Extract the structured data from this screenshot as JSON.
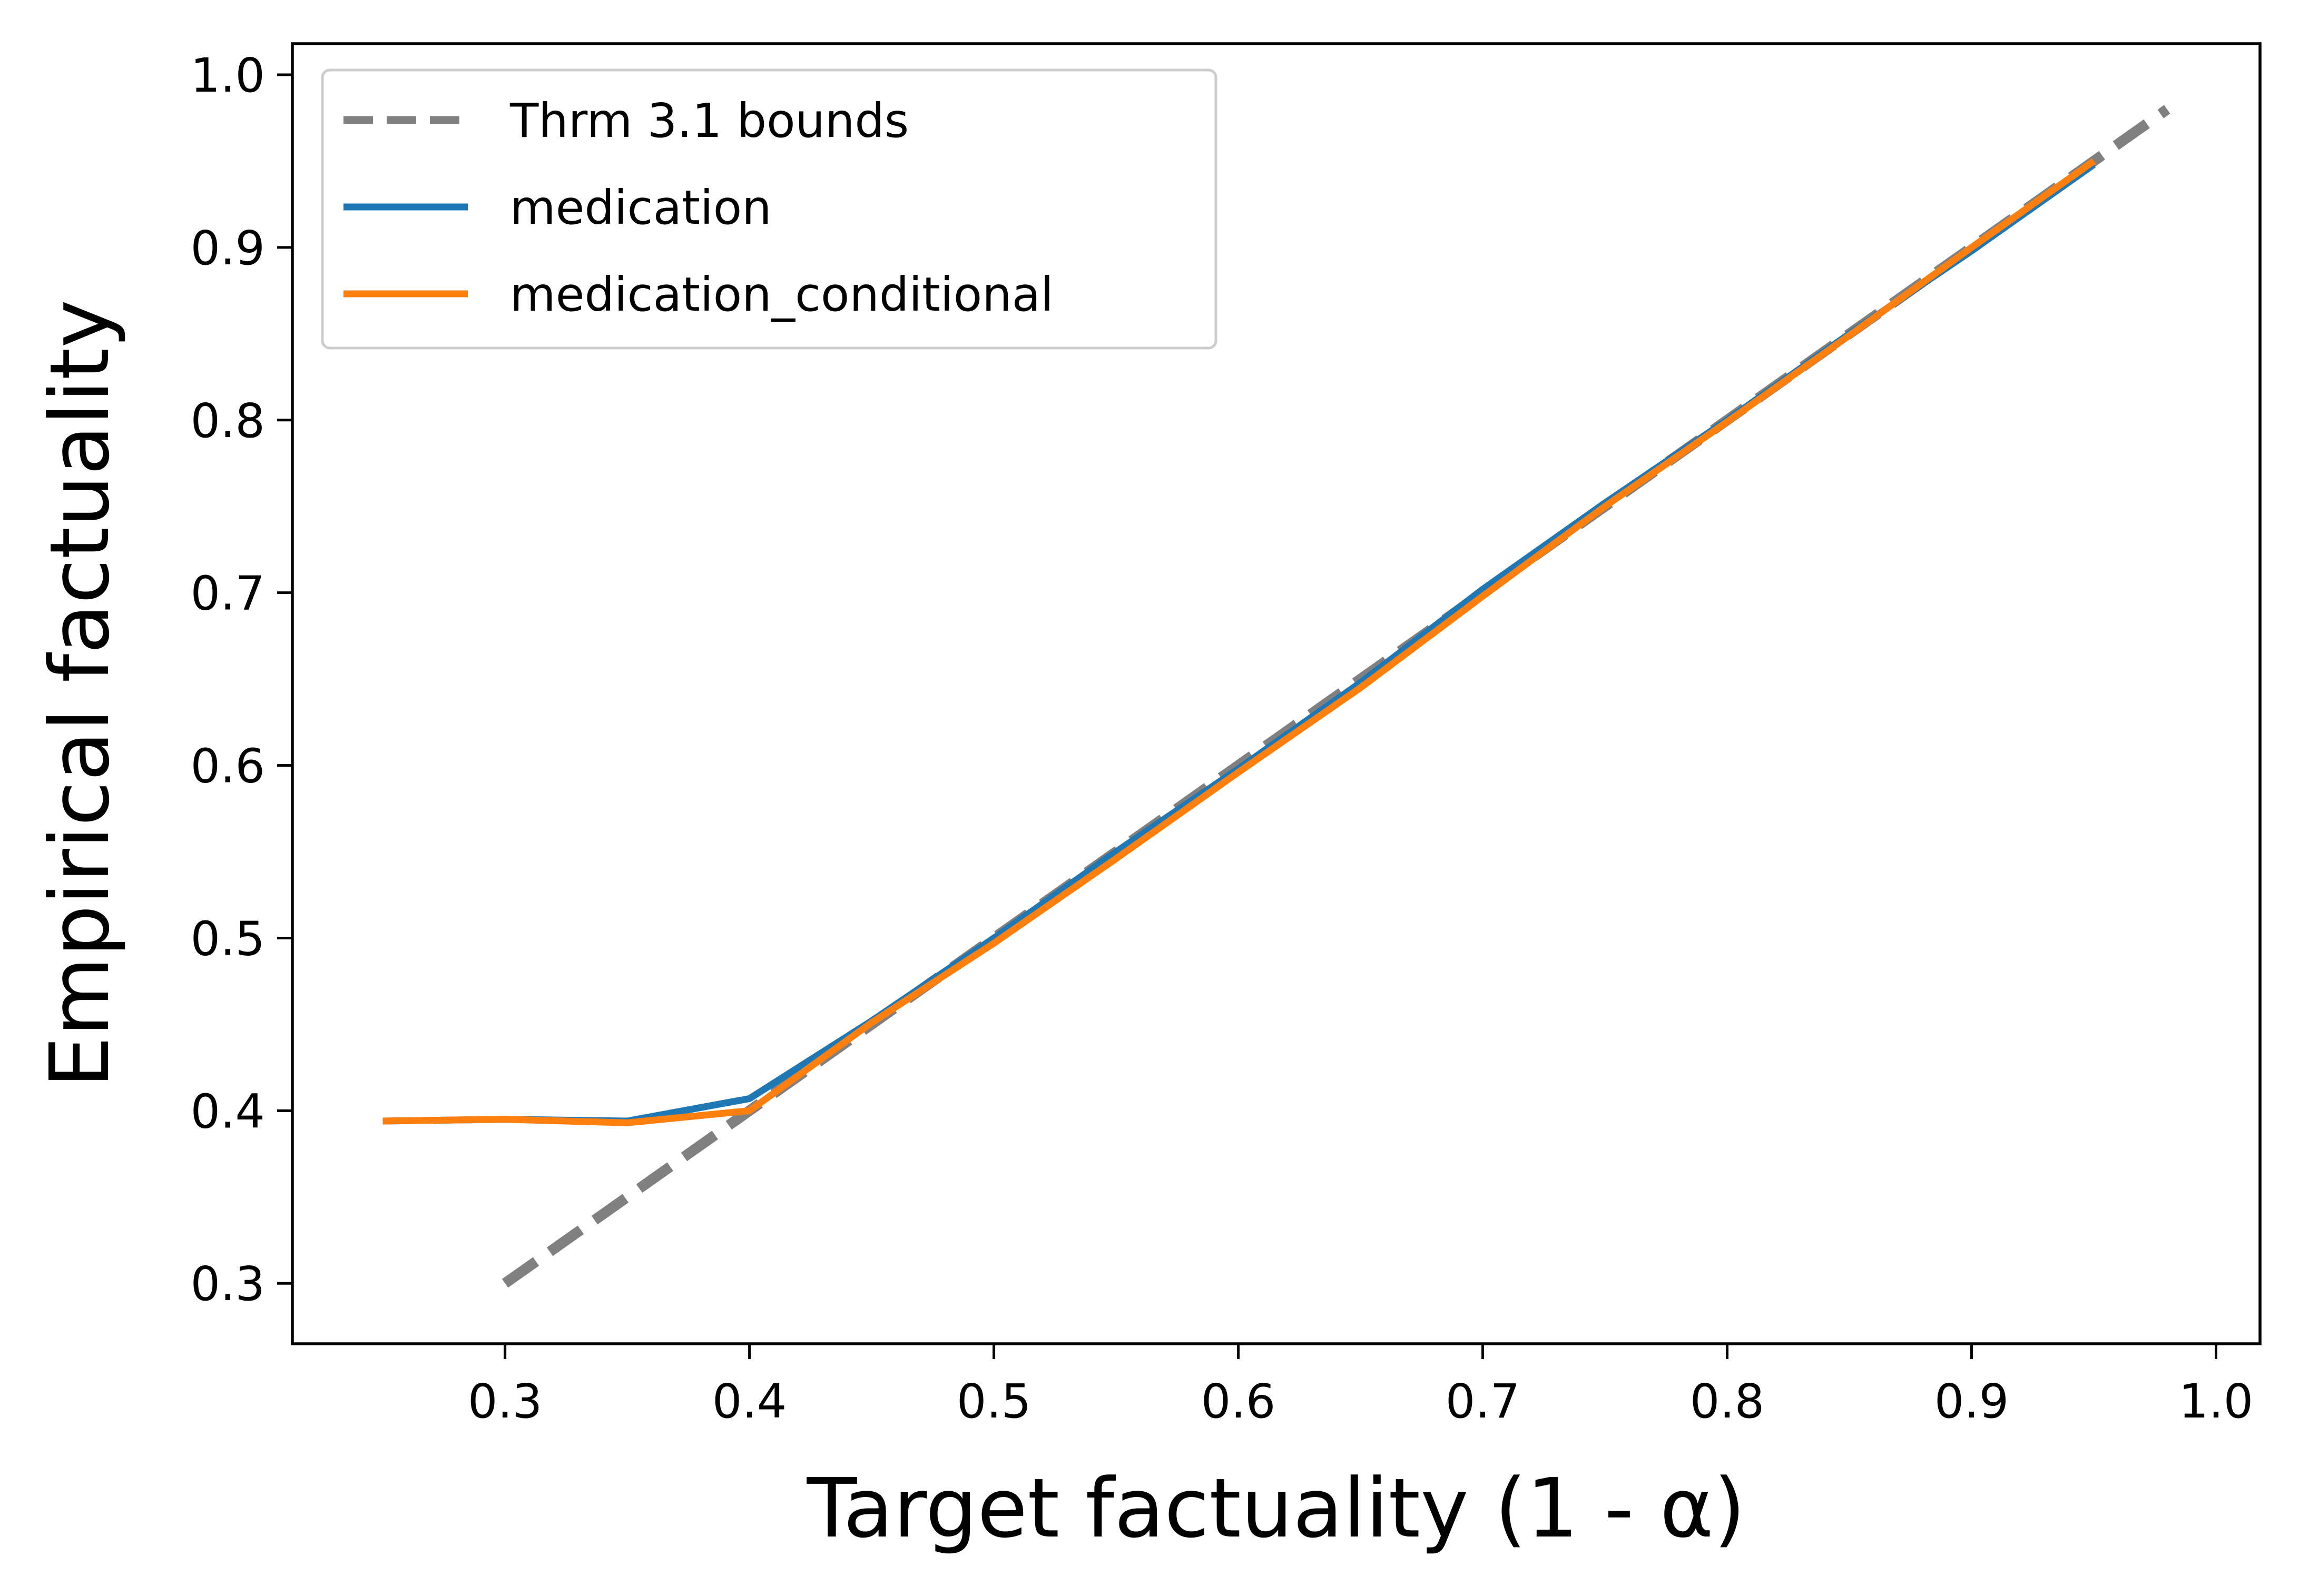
{
  "chart_data": {
    "type": "line",
    "title": "",
    "xlabel": "Target factuality (1 - α)",
    "ylabel": "Empirical factuality",
    "xlim": [
      0.213,
      1.018
    ],
    "ylim": [
      0.265,
      1.018
    ],
    "x_ticks": [
      0.3,
      0.4,
      0.5,
      0.6,
      0.7,
      0.8,
      0.9,
      1.0
    ],
    "x_tick_labels": [
      "0.3",
      "0.4",
      "0.5",
      "0.6",
      "0.7",
      "0.8",
      "0.9",
      "1.0"
    ],
    "y_ticks": [
      0.3,
      0.4,
      0.5,
      0.6,
      0.7,
      0.8,
      0.9,
      1.0
    ],
    "y_tick_labels": [
      "0.3",
      "0.4",
      "0.5",
      "0.6",
      "0.7",
      "0.8",
      "0.9",
      "1.0"
    ],
    "grid": false,
    "legend_position": "top-left",
    "series": [
      {
        "name": "Thrm 3.1 bounds",
        "style": "dashed",
        "color": "#808080",
        "x": [
          0.3,
          0.98
        ],
        "y": [
          0.3,
          0.98
        ]
      },
      {
        "name": "medication",
        "style": "solid",
        "color": "#1f77b4",
        "x": [
          0.25,
          0.3,
          0.35,
          0.4,
          0.45,
          0.5,
          0.55,
          0.6,
          0.65,
          0.7,
          0.75,
          0.8,
          0.85,
          0.9,
          0.95
        ],
        "y": [
          0.394,
          0.395,
          0.394,
          0.407,
          0.452,
          0.5,
          0.55,
          0.598,
          0.648,
          0.702,
          0.752,
          0.8,
          0.85,
          0.898,
          0.948
        ]
      },
      {
        "name": "medication_conditional",
        "style": "solid",
        "color": "#ff7f0e",
        "x": [
          0.25,
          0.3,
          0.35,
          0.4,
          0.45,
          0.5,
          0.55,
          0.6,
          0.65,
          0.7,
          0.75,
          0.8,
          0.85,
          0.9,
          0.95
        ],
        "y": [
          0.394,
          0.395,
          0.393,
          0.4,
          0.451,
          0.497,
          0.546,
          0.596,
          0.645,
          0.698,
          0.75,
          0.799,
          0.849,
          0.9,
          0.95
        ]
      }
    ]
  }
}
